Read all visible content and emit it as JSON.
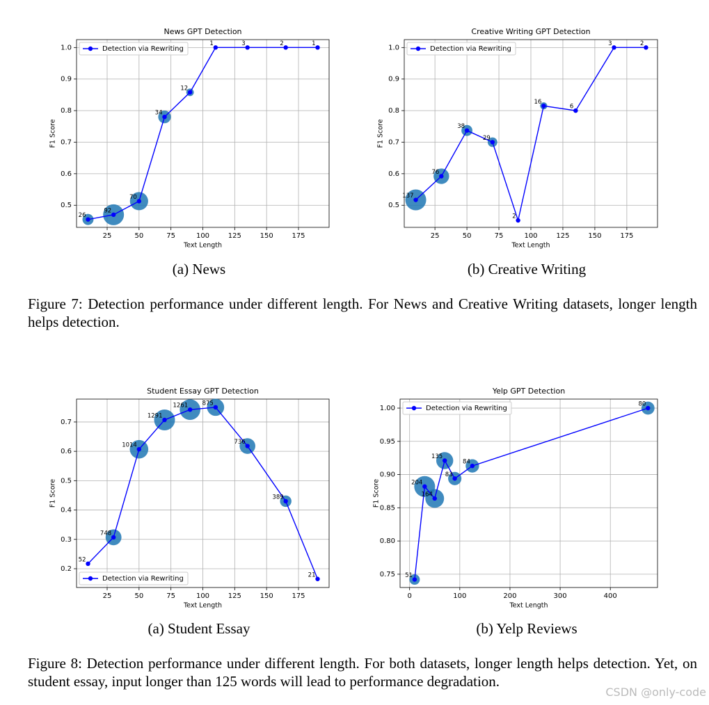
{
  "chart_data": [
    {
      "type": "line",
      "title": "News GPT Detection",
      "xlabel": "Text Length",
      "ylabel": "F1 Score",
      "x": [
        10,
        30,
        50,
        70,
        90,
        110,
        135,
        165,
        190
      ],
      "series": [
        {
          "name": "Detection via Rewriting",
          "color": "#0000ff",
          "values": [
            0.455,
            0.47,
            0.513,
            0.78,
            0.858,
            1.0,
            1.0,
            1.0,
            1.0
          ],
          "sizes": [
            26,
            92,
            70,
            34,
            12,
            1,
            3,
            2,
            1
          ]
        }
      ],
      "size_color": "#1f77b4",
      "xlim": [
        1,
        199
      ],
      "ylim": [
        0.43,
        1.025
      ],
      "xticks": [
        25,
        50,
        75,
        100,
        125,
        150,
        175
      ],
      "yticks": [
        {
          "value": 0.5,
          "label": "0.5"
        },
        0.6,
        0.7,
        0.8,
        0.9,
        {
          "value": 1,
          "label": "1.0"
        }
      ],
      "grid": true,
      "legend": "upper left"
    },
    {
      "type": "line",
      "title": "Creative Writing GPT Detection",
      "xlabel": "Text Length",
      "ylabel": "F1 Score",
      "x": [
        10,
        30,
        50,
        70,
        90,
        110,
        135,
        165,
        190
      ],
      "series": [
        {
          "name": "Detection via Rewriting",
          "color": "#0000ff",
          "values": [
            0.517,
            0.592,
            0.737,
            0.7,
            0.452,
            0.815,
            0.8,
            1.0,
            1.0
          ],
          "sizes": [
            137,
            76,
            38,
            29,
            2,
            16,
            6,
            3,
            2
          ]
        }
      ],
      "size_color": "#1f77b4",
      "xlim": [
        1,
        199
      ],
      "ylim": [
        0.43,
        1.025
      ],
      "xticks": [
        25,
        50,
        75,
        100,
        125,
        150,
        175
      ],
      "yticks": [
        {
          "value": 0.5,
          "label": "0.5"
        },
        0.6,
        0.7,
        0.8,
        0.9,
        {
          "value": 1,
          "label": "1.0"
        }
      ],
      "grid": true,
      "legend": "upper left"
    },
    {
      "type": "line",
      "title": "Student Essay GPT Detection",
      "xlabel": "Text Length",
      "ylabel": "F1 Score",
      "x": [
        10,
        30,
        50,
        70,
        90,
        110,
        135,
        165,
        190
      ],
      "series": [
        {
          "name": "Detection via Rewriting",
          "color": "#0000ff",
          "values": [
            0.217,
            0.307,
            0.607,
            0.707,
            0.742,
            0.75,
            0.618,
            0.43,
            0.165
          ],
          "sizes": [
            52,
            748,
            1014,
            1291,
            1261,
            875,
            736,
            389,
            21
          ]
        }
      ],
      "size_color": "#1f77b4",
      "xlim": [
        1,
        199
      ],
      "ylim": [
        0.136,
        0.778
      ],
      "xticks": [
        25,
        50,
        75,
        100,
        125,
        150,
        175
      ],
      "yticks": [
        0.2,
        0.3,
        0.4,
        0.5,
        0.6,
        0.7
      ],
      "grid": true,
      "legend": "lower left"
    },
    {
      "type": "line",
      "title": "Yelp GPT Detection",
      "xlabel": "Text Length",
      "ylabel": "F1 Score",
      "x": [
        10,
        30,
        50,
        70,
        90,
        125,
        475
      ],
      "series": [
        {
          "name": "Detection via Rewriting",
          "color": "#0000ff",
          "values": [
            0.742,
            0.882,
            0.864,
            0.921,
            0.894,
            0.913,
            1.0
          ],
          "sizes": [
            51,
            204,
            164,
            135,
            83,
            84,
            80
          ]
        }
      ],
      "size_color": "#1f77b4",
      "xlim": [
        -19,
        494
      ],
      "ylim": [
        0.73,
        1.0136
      ],
      "xticks": [
        0,
        100,
        200,
        300,
        400
      ],
      "yticks": [
        {
          "value": 0.75,
          "label": "0.75"
        },
        {
          "value": 0.8,
          "label": "0.80"
        },
        {
          "value": 0.85,
          "label": "0.85"
        },
        {
          "value": 0.9,
          "label": "0.90"
        },
        {
          "value": 0.95,
          "label": "0.95"
        },
        {
          "value": 1,
          "label": "1.00"
        }
      ],
      "grid": true,
      "legend": "upper left"
    }
  ],
  "figures": [
    {
      "subcaptions": [
        "(a) News",
        "(b) Creative Writing"
      ],
      "caption": "Figure 7: Detection performance under different length. For News and Creative Writing datasets, longer length helps detection."
    },
    {
      "subcaptions": [
        "(a) Student Essay",
        "(b) Yelp Reviews"
      ],
      "caption": "Figure 8: Detection performance under different length. For both datasets, longer length helps detection. Yet, on student essay, input longer than 125 words will lead to performance degradation."
    }
  ],
  "watermark": "CSDN @only-code"
}
